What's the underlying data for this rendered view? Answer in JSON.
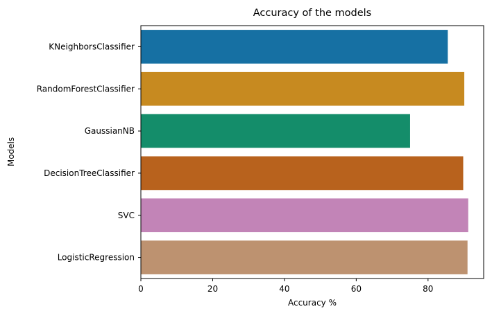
{
  "chart_data": {
    "type": "bar",
    "orientation": "horizontal",
    "title": "Accuracy of the models",
    "xlabel": "Accuracy %",
    "ylabel": "Models",
    "xlim": [
      0,
      95.5
    ],
    "xticks": [
      0,
      20,
      40,
      60,
      80
    ],
    "grid": false,
    "legend": "none",
    "categories": [
      "KNeighborsClassifier",
      "RandomForestClassifier",
      "GaussianNB",
      "DecisionTreeClassifier",
      "SVC",
      "LogisticRegression"
    ],
    "values": [
      85.5,
      90.1,
      75.0,
      89.8,
      91.2,
      91.0
    ],
    "colors": [
      "#1670a3",
      "#c78a20",
      "#148d6a",
      "#b8621d",
      "#c284b7",
      "#bd9270"
    ]
  }
}
